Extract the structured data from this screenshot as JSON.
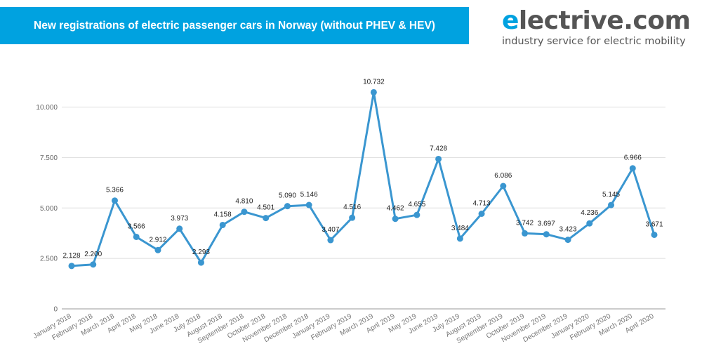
{
  "header": {
    "title": "New registrations of electric passenger cars in Norway (without PHEV & HEV)",
    "title_bar_color": "#00a2e0"
  },
  "logo": {
    "first_letter": "e",
    "rest": "lectrive.com",
    "tagline": "industry service for electric mobility",
    "accent_color": "#00a2e0"
  },
  "chart_data": {
    "type": "line",
    "title": "New registrations of electric passenger cars in Norway (without PHEV & HEV)",
    "xlabel": "",
    "ylabel": "",
    "ylim": [
      0,
      12000
    ],
    "yticks": [
      0,
      2500,
      5000,
      7500,
      10000
    ],
    "ytick_labels": [
      "0",
      "2.500",
      "5.000",
      "7.500",
      "10.000"
    ],
    "grid": true,
    "legend": "none",
    "line_color": "#3a96d0",
    "categories": [
      "January 2018",
      "February 2018",
      "March 2018",
      "April 2018",
      "May 2018",
      "June 2018",
      "July 2018",
      "August 2018",
      "September 2018",
      "October 2018",
      "November 2018",
      "December 2018",
      "January 2019",
      "February 2019",
      "March 2019",
      "April 2019",
      "May 2019",
      "June 2019",
      "July 2019",
      "August 2019",
      "September 2019",
      "October 2019",
      "November 2019",
      "December 2019",
      "January 2020",
      "February 2020",
      "March 2020",
      "April 2020"
    ],
    "series": [
      {
        "values": [
          2128,
          2200,
          5366,
          3566,
          2912,
          3973,
          2293,
          4158,
          4810,
          4501,
          5090,
          5146,
          3407,
          4516,
          10732,
          4462,
          4655,
          7428,
          3484,
          4713,
          6086,
          3742,
          3697,
          3423,
          4236,
          5145,
          6966,
          3671
        ],
        "labels": [
          "2.128",
          "2.200",
          "5.366",
          "3.566",
          "2.912",
          "3.973",
          "2.293",
          "4.158",
          "4.810",
          "4.501",
          "5.090",
          "5.146",
          "3.407",
          "4.516",
          "10.732",
          "4.462",
          "4.655",
          "7.428",
          "3.484",
          "4.713",
          "6.086",
          "3.742",
          "3.697",
          "3.423",
          "4.236",
          "5.145",
          "6.966",
          "3.671"
        ]
      }
    ]
  }
}
